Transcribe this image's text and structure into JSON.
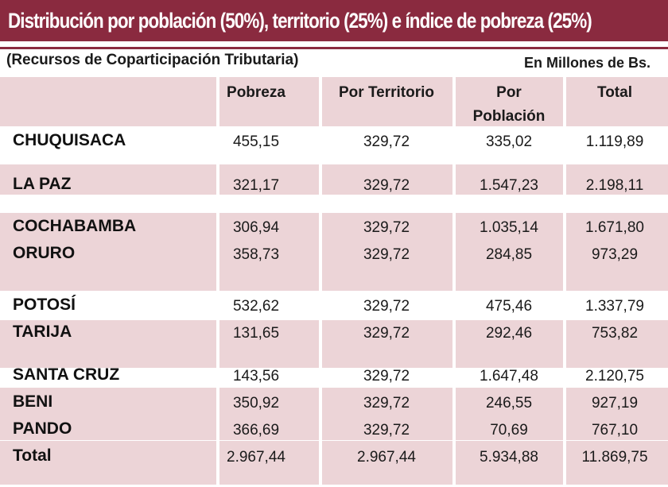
{
  "header": {
    "title": "Distribución por población (50%), territorio (25%) e índice de pobreza (25%)",
    "subtitle": "(Recursos de Coparticipación Tributaria)",
    "units": "En Millones de Bs."
  },
  "colors": {
    "title_bar": "#8a2a3f",
    "band": "#ecd4d7",
    "text": "#1a1a1a"
  },
  "chart_data": {
    "type": "table",
    "columns": [
      "Pobreza",
      "Por Territorio",
      "Por Población",
      "Total"
    ],
    "column_header_lines": [
      [
        "Pobreza"
      ],
      [
        "Por Territorio"
      ],
      [
        "Por",
        "Población"
      ],
      [
        "Total"
      ]
    ],
    "rows": [
      {
        "name": "CHUQUISACA",
        "values": [
          "455,15",
          "329,72",
          "335,02",
          "1.119,89"
        ]
      },
      {
        "name": "LA PAZ",
        "values": [
          "321,17",
          "329,72",
          "1.547,23",
          "2.198,11"
        ]
      },
      {
        "name": "COCHABAMBA",
        "values": [
          "306,94",
          "329,72",
          "1.035,14",
          "1.671,80"
        ]
      },
      {
        "name": "ORURO",
        "values": [
          "358,73",
          "329,72",
          "284,85",
          "973,29"
        ]
      },
      {
        "name": "POTOSÍ",
        "values": [
          "532,62",
          "329,72",
          "475,46",
          "1.337,79"
        ]
      },
      {
        "name": "TARIJA",
        "values": [
          "131,65",
          "329,72",
          "292,46",
          "753,82"
        ]
      },
      {
        "name": "SANTA CRUZ",
        "values": [
          "143,56",
          "329,72",
          "1.647,48",
          "2.120,75"
        ]
      },
      {
        "name": "BENI",
        "values": [
          "350,92",
          "329,72",
          "246,55",
          "927,19"
        ]
      },
      {
        "name": "PANDO",
        "values": [
          "366,69",
          "329,72",
          "70,69",
          "767,10"
        ]
      }
    ],
    "total": {
      "name": "Total",
      "values": [
        "2.967,44",
        "2.967,44",
        "5.934,88",
        "11.869,75"
      ]
    }
  }
}
